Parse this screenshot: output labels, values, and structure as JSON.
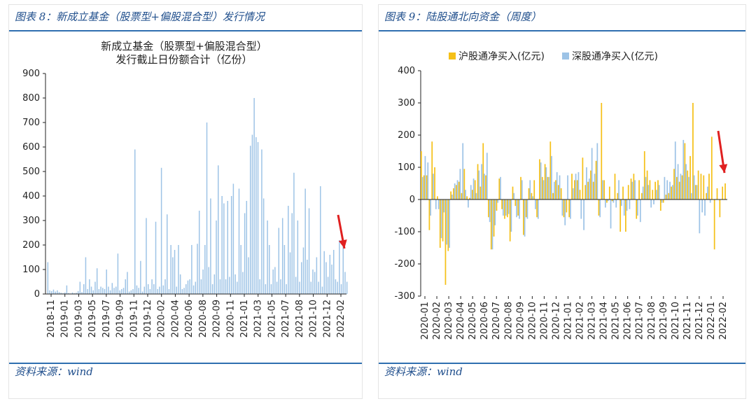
{
  "left_panel": {
    "title": "图表 8：新成立基金（股票型+偏股混合型）发行情况",
    "source": "资料来源：wind"
  },
  "right_panel": {
    "title": "图表 9：陆股通北向资金（周度）",
    "source": "资料来源：wind"
  },
  "colors": {
    "panel_text": "#1f4e8c",
    "rule": "#2f6fb0",
    "light_blue": "#9dc3e6",
    "yellow": "#f5c018",
    "arrow_red": "#e02020",
    "axis": "#222222"
  },
  "chart_data": [
    {
      "type": "bar",
      "title_lines": [
        "新成立基金（股票型+偏股混合型）",
        "发行截止日份额合计（亿份）"
      ],
      "ylim": [
        0,
        900
      ],
      "yticks": [
        0,
        100,
        200,
        300,
        400,
        500,
        600,
        700,
        800,
        900
      ],
      "x_range": [
        "2018-11",
        "2022-02"
      ],
      "xticks": [
        "2018-11",
        "2019-01",
        "2019-03",
        "2019-05",
        "2019-07",
        "2019-09",
        "2019-11",
        "2019-12",
        "2020-02",
        "2020-04",
        "2020-06",
        "2020-08",
        "2020-09",
        "2020-11",
        "2021-01",
        "2021-03",
        "2021-05",
        "2021-07",
        "2021-08",
        "2021-10",
        "2021-12",
        "2022-02"
      ],
      "series": [
        {
          "color": "#9dc3e6",
          "values": [
            130,
            15,
            12,
            18,
            10,
            15,
            8,
            5,
            3,
            6,
            35,
            4,
            2,
            6,
            3,
            5,
            12,
            50,
            8,
            40,
            150,
            20,
            60,
            30,
            15,
            50,
            105,
            20,
            30,
            25,
            20,
            100,
            30,
            15,
            45,
            25,
            30,
            165,
            15,
            20,
            25,
            60,
            90,
            10,
            15,
            20,
            590,
            35,
            25,
            135,
            10,
            30,
            310,
            40,
            20,
            60,
            40,
            295,
            20,
            30,
            515,
            35,
            60,
            325,
            20,
            200,
            150,
            180,
            30,
            200,
            80,
            20,
            25,
            40,
            55,
            60,
            200,
            35,
            50,
            205,
            340,
            60,
            100,
            200,
            700,
            110,
            390,
            40,
            80,
            300,
            525,
            60,
            400,
            370,
            60,
            380,
            70,
            400,
            450,
            80,
            50,
            430,
            200,
            90,
            330,
            380,
            150,
            605,
            650,
            800,
            640,
            620,
            60,
            590,
            390,
            40,
            300,
            200,
            40,
            100,
            110,
            50,
            270,
            60,
            310,
            200,
            40,
            360,
            170,
            330,
            495,
            70,
            300,
            50,
            130,
            190,
            430,
            140,
            350,
            50,
            100,
            90,
            150,
            50,
            440,
            30,
            175,
            130,
            70,
            160,
            120,
            180,
            60,
            50,
            220,
            40,
            205,
            90,
            50
          ]
        }
      ],
      "annotation": "red-arrow-down"
    },
    {
      "type": "bar",
      "legend_position": "top-center",
      "ylim": [
        -300,
        400
      ],
      "yticks": [
        400,
        300,
        200,
        100,
        0,
        -100,
        -200,
        -300
      ],
      "x_range": [
        "2020-01",
        "2022-02"
      ],
      "xticks": [
        "2020-01",
        "2020-02",
        "2020-03",
        "2020-04",
        "2020-05",
        "2020-06",
        "2020-07",
        "2020-08",
        "2020-09",
        "2020-10",
        "2020-11",
        "2020-12",
        "2021-01",
        "2021-02",
        "2021-03",
        "2021-04",
        "2021-05",
        "2021-06",
        "2021-07",
        "2021-08",
        "2021-09",
        "2021-10",
        "2021-11",
        "2021-12",
        "2022-01",
        "2022-02"
      ],
      "series": [
        {
          "name": "沪股通净买入(亿元)",
          "color": "#f5c018",
          "values": [
            150,
            75,
            75,
            -95,
            180,
            100,
            10,
            -150,
            -130,
            -265,
            -160,
            25,
            35,
            45,
            55,
            20,
            95,
            10,
            5,
            30,
            60,
            110,
            40,
            175,
            75,
            -55,
            -155,
            -115,
            -35,
            65,
            -30,
            -60,
            -55,
            -130,
            40,
            -20,
            -50,
            70,
            -110,
            -55,
            35,
            20,
            60,
            -55,
            125,
            70,
            110,
            70,
            180,
            20,
            60,
            45,
            35,
            -55,
            -40,
            -55,
            80,
            60,
            60,
            30,
            130,
            45,
            55,
            90,
            55,
            120,
            -50,
            300,
            60,
            -10,
            40,
            -5,
            80,
            20,
            -100,
            40,
            -100,
            45,
            65,
            80,
            -60,
            60,
            20,
            150,
            90,
            60,
            30,
            55,
            60,
            -35,
            -10,
            15,
            20,
            40,
            95,
            70,
            55,
            75,
            175,
            90,
            135,
            300,
            45,
            90,
            80,
            75,
            20,
            80,
            195,
            -155,
            35,
            -55,
            40,
            50
          ]
        },
        {
          "name": "深股通净买入(亿元)",
          "color": "#9dc3e6",
          "values": [
            70,
            135,
            115,
            -50,
            80,
            -30,
            -30,
            -120,
            -40,
            -140,
            -150,
            15,
            50,
            60,
            95,
            175,
            30,
            -25,
            45,
            65,
            20,
            90,
            110,
            80,
            145,
            -70,
            -155,
            -80,
            -10,
            70,
            -50,
            -50,
            -45,
            -100,
            20,
            -55,
            -60,
            60,
            -115,
            -60,
            60,
            10,
            -30,
            -60,
            115,
            60,
            100,
            70,
            135,
            55,
            85,
            75,
            -50,
            -80,
            75,
            -60,
            35,
            80,
            85,
            -60,
            -95,
            100,
            65,
            160,
            80,
            175,
            -55,
            60,
            -25,
            -5,
            -90,
            -10,
            -25,
            60,
            -20,
            -50,
            -35,
            -30,
            55,
            60,
            -50,
            -70,
            40,
            70,
            45,
            -25,
            -15,
            30,
            45,
            -10,
            70,
            60,
            55,
            45,
            180,
            110,
            80,
            185,
            110,
            70,
            20,
            75,
            45,
            -105,
            -40,
            -50,
            40,
            -10
          ]
        }
      ],
      "annotation": "red-arrow-down"
    }
  ]
}
